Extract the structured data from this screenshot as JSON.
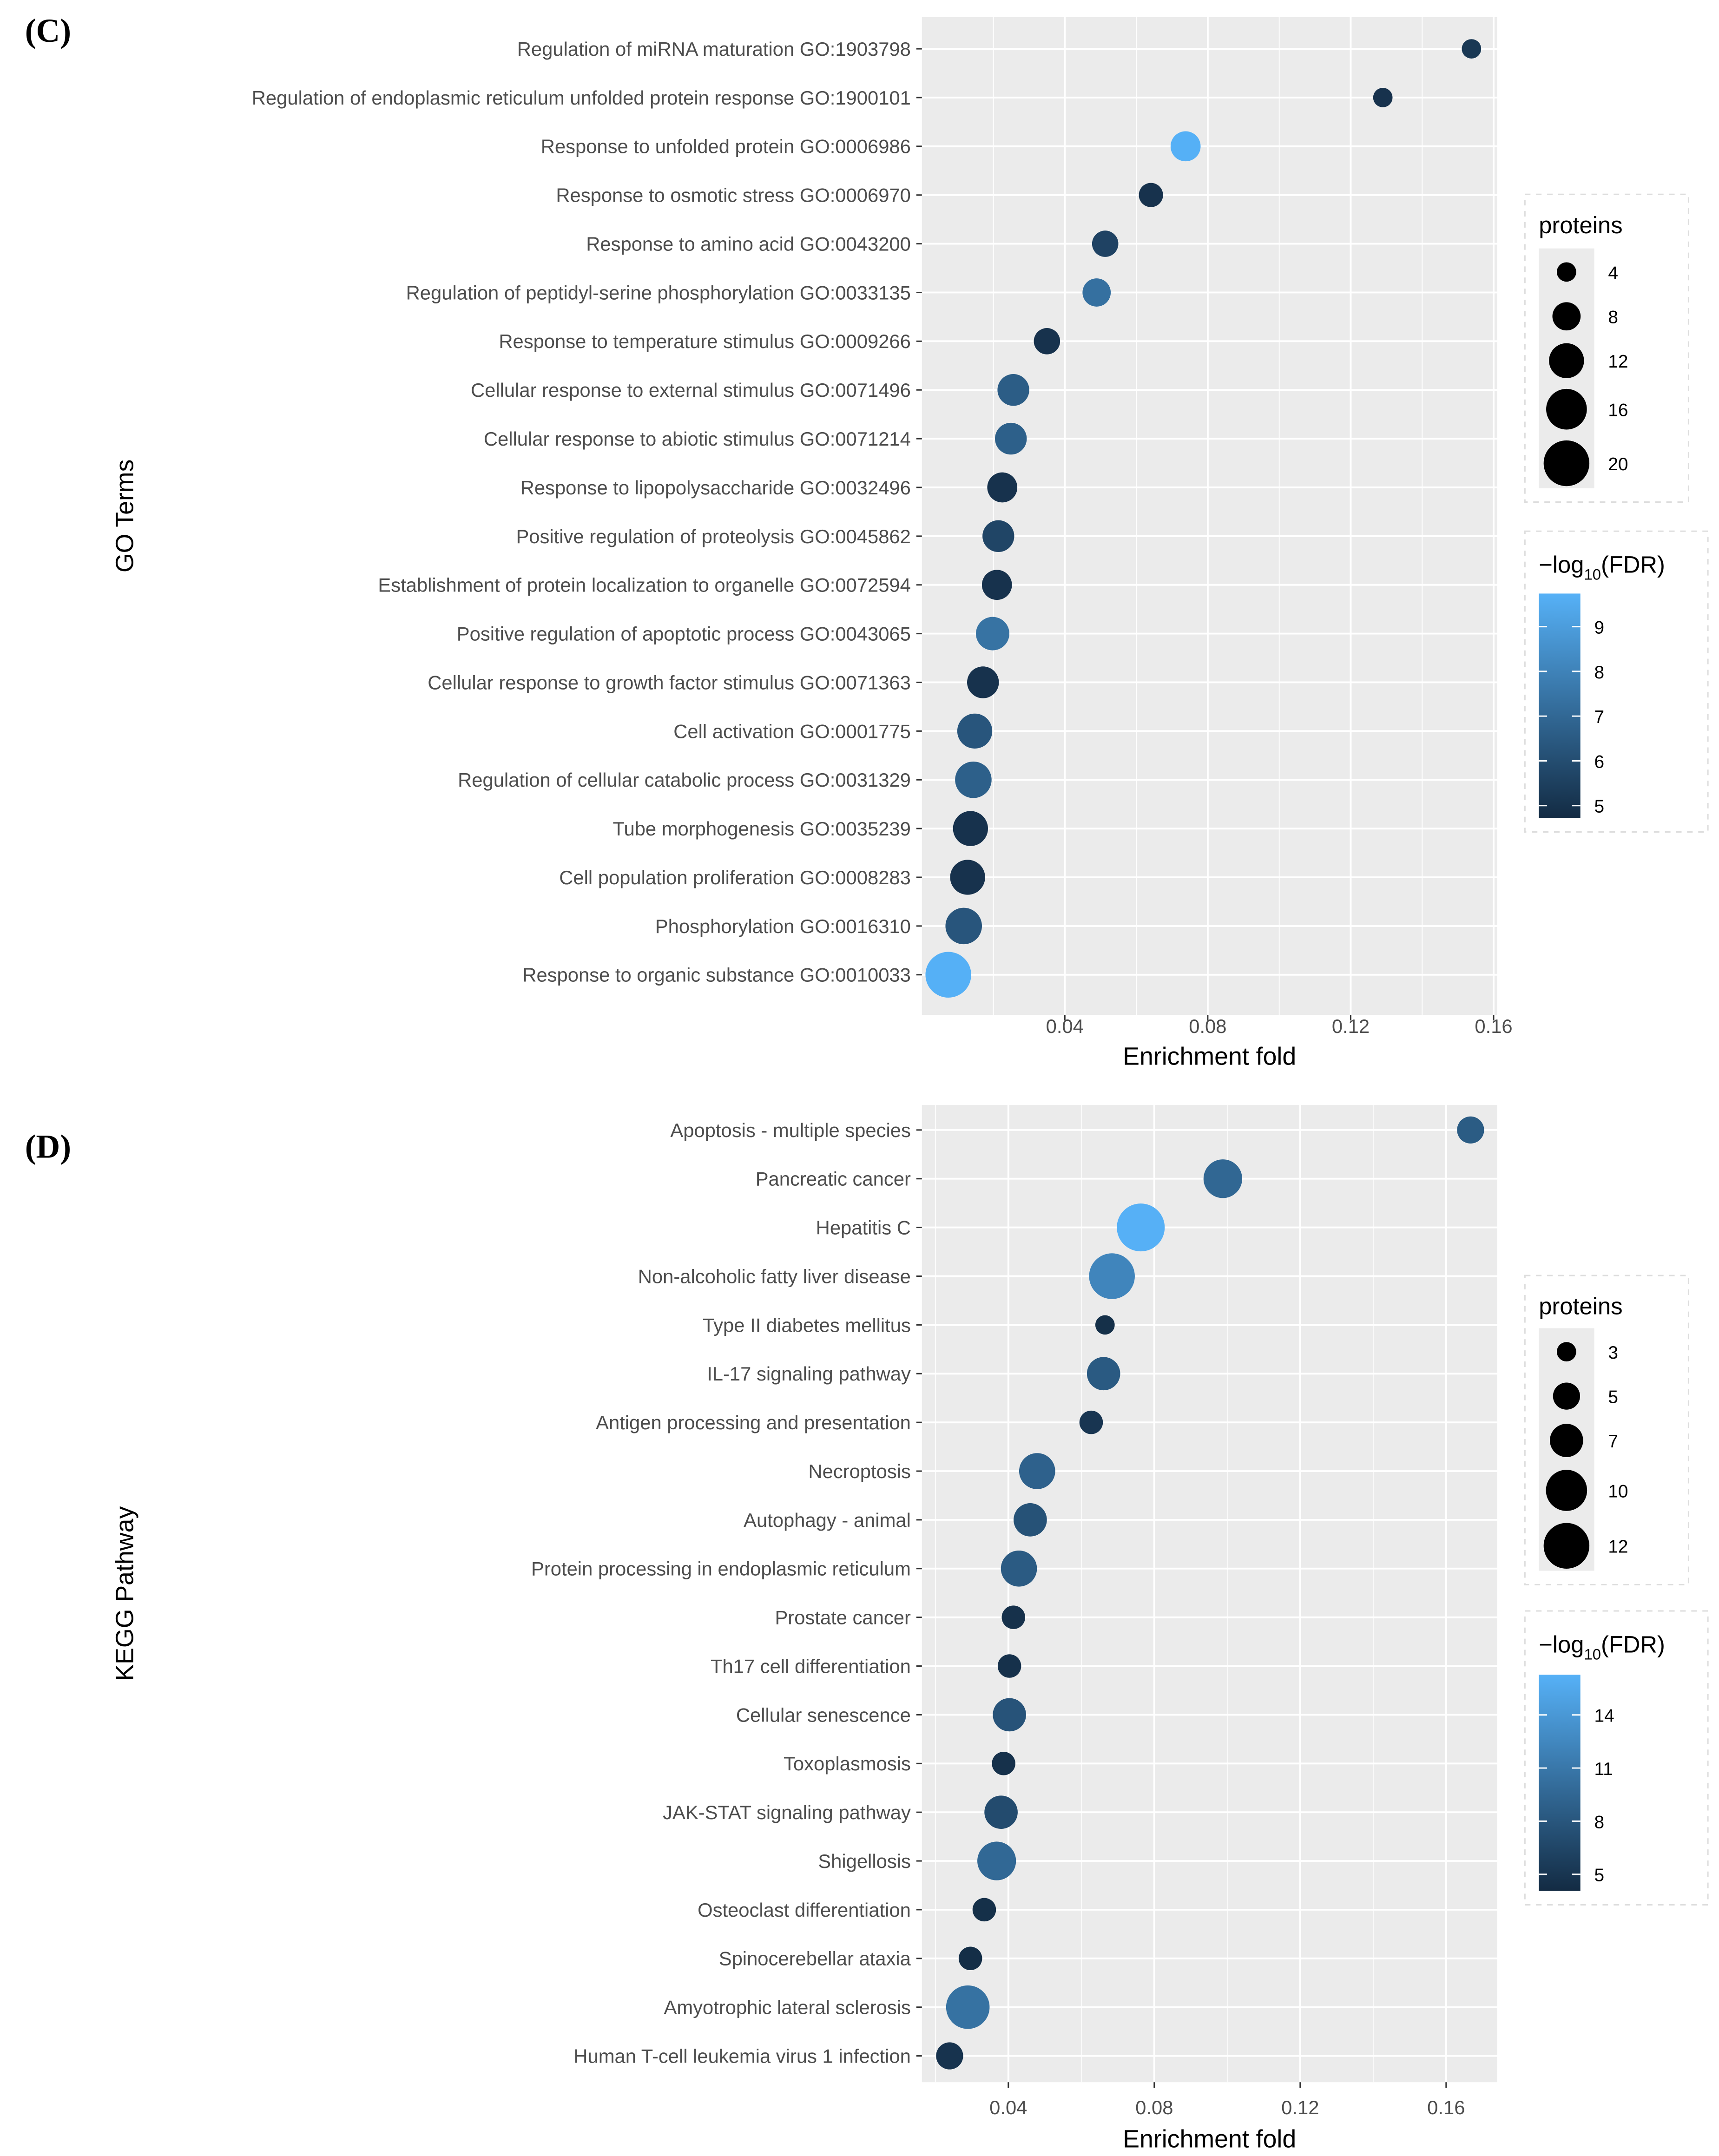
{
  "colors": {
    "low": "#132B43",
    "high": "#56B1F7",
    "panel_bg": "#EBEBEB",
    "grid": "#FFFFFF"
  },
  "chart_data": [
    {
      "type": "scatter",
      "panel_label": "(C)",
      "xlabel": "Enrichment fold",
      "ylabel": "GO Terms",
      "xlim": [
        0.0,
        0.161
      ],
      "xticks": [
        0.04,
        0.08,
        0.12,
        0.16
      ],
      "xtick_labels": [
        "0.04",
        "0.08",
        "0.12",
        "0.16"
      ],
      "minor_xticks": [
        0.02,
        0.06,
        0.1,
        0.14
      ],
      "grid": true,
      "size_legend": {
        "title": "proteins",
        "values": [
          4,
          8,
          12,
          16,
          20
        ],
        "labels": [
          "4",
          "8",
          "12",
          "16",
          "20"
        ]
      },
      "color_legend": {
        "title_prefix": "−log",
        "title_sub": "10",
        "title_suffix": "(FDR)",
        "range": [
          4.72,
          9.74
        ],
        "ticks": [
          9,
          8,
          7,
          6,
          5
        ],
        "labels": [
          "9",
          "8",
          "7",
          "6",
          "5"
        ]
      },
      "points": [
        {
          "term": "Regulation of miRNA maturation GO:1903798",
          "x": 0.1538,
          "proteins": 4,
          "fdr": 5.2
        },
        {
          "term": "Regulation of endoplasmic reticulum unfolded protein response GO:1900101",
          "x": 0.129,
          "proteins": 4,
          "fdr": 5.0
        },
        {
          "term": "Response to unfolded protein GO:0006986",
          "x": 0.0738,
          "proteins": 9,
          "fdr": 9.7
        },
        {
          "term": "Response to osmotic stress GO:0006970",
          "x": 0.0641,
          "proteins": 6,
          "fdr": 5.0
        },
        {
          "term": "Response to amino acid GO:0043200",
          "x": 0.0513,
          "proteins": 7,
          "fdr": 5.6
        },
        {
          "term": "Regulation of peptidyl-serine phosphorylation GO:0033135",
          "x": 0.0489,
          "proteins": 8,
          "fdr": 7.3
        },
        {
          "term": "Response to temperature stimulus GO:0009266",
          "x": 0.035,
          "proteins": 7,
          "fdr": 5.0
        },
        {
          "term": "Cellular response to external stimulus GO:0071496",
          "x": 0.0256,
          "proteins": 10,
          "fdr": 6.6
        },
        {
          "term": "Cellular response to abiotic stimulus GO:0071214",
          "x": 0.0249,
          "proteins": 10,
          "fdr": 6.7
        },
        {
          "term": "Response to lipopolysaccharide GO:0032496",
          "x": 0.0225,
          "proteins": 9,
          "fdr": 5.0
        },
        {
          "term": "Positive regulation of proteolysis GO:0045862",
          "x": 0.0214,
          "proteins": 10,
          "fdr": 5.7
        },
        {
          "term": "Establishment of protein localization to organelle GO:0072594",
          "x": 0.021,
          "proteins": 9,
          "fdr": 5.0
        },
        {
          "term": "Positive regulation of apoptotic process GO:0043065",
          "x": 0.0198,
          "proteins": 11,
          "fdr": 7.4
        },
        {
          "term": "Cellular response to growth factor stimulus GO:0071363",
          "x": 0.0171,
          "proteins": 10,
          "fdr": 5.0
        },
        {
          "term": "Cell activation GO:0001775",
          "x": 0.0148,
          "proteins": 12,
          "fdr": 6.3
        },
        {
          "term": "Regulation of cellular catabolic process GO:0031329",
          "x": 0.0144,
          "proteins": 13,
          "fdr": 6.7
        },
        {
          "term": "Tube morphogenesis GO:0035239",
          "x": 0.0136,
          "proteins": 12,
          "fdr": 5.0
        },
        {
          "term": "Cell population proliferation GO:0008283",
          "x": 0.0128,
          "proteins": 12,
          "fdr": 5.0
        },
        {
          "term": "Phosphorylation GO:0016310",
          "x": 0.0117,
          "proteins": 13,
          "fdr": 6.3
        },
        {
          "term": "Response to organic substance GO:0010033",
          "x": 0.0074,
          "proteins": 20,
          "fdr": 9.7
        }
      ]
    },
    {
      "type": "scatter",
      "panel_label": "(D)",
      "xlabel": "Enrichment fold",
      "ylabel": "KEGG Pathway",
      "xlim": [
        0.0163,
        0.174
      ],
      "xticks": [
        0.04,
        0.08,
        0.12,
        0.16
      ],
      "xtick_labels": [
        "0.04",
        "0.08",
        "0.12",
        "0.16"
      ],
      "minor_xticks": [
        0.02,
        0.06,
        0.1,
        0.14
      ],
      "grid": true,
      "size_legend": {
        "title": "proteins",
        "values": [
          3,
          5,
          7,
          10,
          12
        ],
        "labels": [
          "3",
          "5",
          "7",
          "10",
          "12"
        ]
      },
      "color_legend": {
        "title_prefix": "−log",
        "title_sub": "10",
        "title_suffix": "(FDR)",
        "range": [
          4.06,
          16.27
        ],
        "ticks": [
          14,
          11,
          8,
          5
        ],
        "labels": [
          "14",
          "11",
          "8",
          "5"
        ]
      },
      "points": [
        {
          "term": "Apoptosis - multiple species",
          "x": 0.1667,
          "proteins": 5,
          "fdr": 8.5
        },
        {
          "term": "Pancreatic cancer",
          "x": 0.0988,
          "proteins": 9,
          "fdr": 9.5
        },
        {
          "term": "Hepatitis C",
          "x": 0.0763,
          "proteins": 13,
          "fdr": 16.2
        },
        {
          "term": "Non-alcoholic fatty liver disease",
          "x": 0.0684,
          "proteins": 12,
          "fdr": 12.3
        },
        {
          "term": "Type II diabetes mellitus",
          "x": 0.0665,
          "proteins": 3,
          "fdr": 4.5
        },
        {
          "term": "IL-17 signaling pathway",
          "x": 0.0661,
          "proteins": 7,
          "fdr": 8.3
        },
        {
          "term": "Antigen processing and presentation",
          "x": 0.0627,
          "proteins": 4,
          "fdr": 5.0
        },
        {
          "term": "Necroptosis",
          "x": 0.0479,
          "proteins": 8,
          "fdr": 9.0
        },
        {
          "term": "Autophagy - animal",
          "x": 0.046,
          "proteins": 7,
          "fdr": 7.6
        },
        {
          "term": "Protein processing in endoplasmic reticulum",
          "x": 0.0429,
          "proteins": 8,
          "fdr": 8.4
        },
        {
          "term": "Prostate cancer",
          "x": 0.0414,
          "proteins": 4,
          "fdr": 4.6
        },
        {
          "term": "Th17 cell differentiation",
          "x": 0.0403,
          "proteins": 4,
          "fdr": 4.6
        },
        {
          "term": "Cellular senescence",
          "x": 0.0403,
          "proteins": 7,
          "fdr": 7.7
        },
        {
          "term": "Toxoplasmosis",
          "x": 0.0387,
          "proteins": 4,
          "fdr": 4.6
        },
        {
          "term": "JAK-STAT signaling pathway",
          "x": 0.038,
          "proteins": 7,
          "fdr": 7.0
        },
        {
          "term": "Shigellosis",
          "x": 0.0368,
          "proteins": 9,
          "fdr": 9.6
        },
        {
          "term": "Osteoclast differentiation",
          "x": 0.0334,
          "proteins": 4,
          "fdr": 4.5
        },
        {
          "term": "Spinocerebellar ataxia",
          "x": 0.0296,
          "proteins": 4,
          "fdr": 4.3
        },
        {
          "term": "Amyotrophic lateral sclerosis",
          "x": 0.0289,
          "proteins": 11,
          "fdr": 10.5
        },
        {
          "term": "Human T-cell leukemia virus 1 infection",
          "x": 0.0239,
          "proteins": 5,
          "fdr": 4.8
        }
      ]
    }
  ]
}
